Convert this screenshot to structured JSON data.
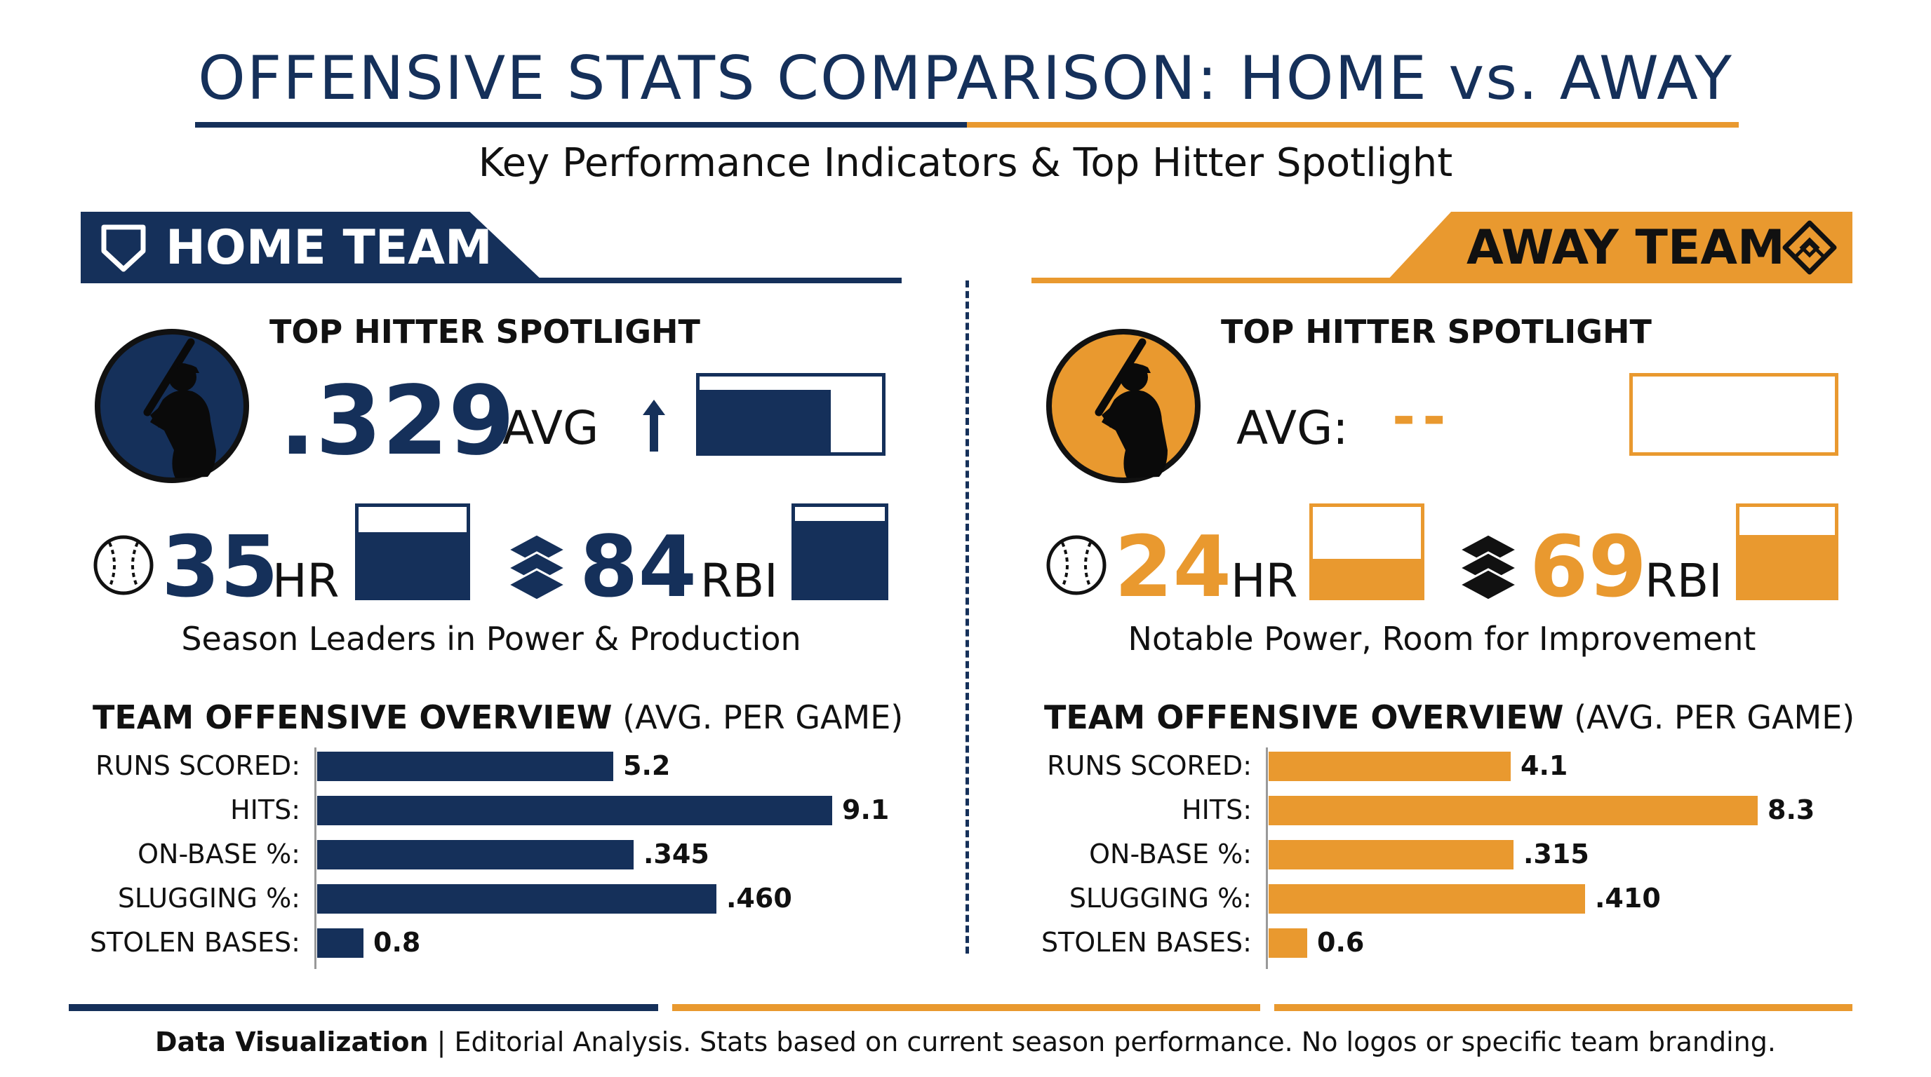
{
  "header": {
    "title": "OFFENSIVE STATS COMPARISON: HOME vs. AWAY",
    "subtitle": "Key Performance Indicators & Top Hitter Spotlight"
  },
  "colors": {
    "home": "#15305a",
    "away": "#e9992f"
  },
  "home": {
    "team_label": "HOME TEAM",
    "icon": "home-plate-icon",
    "spotlight_title": "TOP HITTER SPOTLIGHT",
    "avg_value": ".329",
    "avg_unit": "AVG",
    "avg_trend": "up-arrow-icon",
    "avg_gauge_fill": 0.72,
    "hr_value": "35",
    "hr_unit": "HR",
    "hr_gauge_fill": 0.72,
    "rbi_value": "84",
    "rbi_unit": "RBI",
    "rbi_gauge_fill": 0.84,
    "caption": "Season Leaders in Power & Production",
    "overview_title_bold": "TEAM OFFENSIVE OVERVIEW",
    "overview_title_rest": " (AVG. PER GAME)"
  },
  "away": {
    "team_label": "AWAY TEAM",
    "icon": "baseball-diamond-icon",
    "spotlight_title": "TOP HITTER SPOTLIGHT",
    "avg_label": "AVG:",
    "avg_value": "--",
    "avg_gauge_fill": 0,
    "hr_value": "24",
    "hr_unit": "HR",
    "hr_gauge_fill": 0.42,
    "rbi_value": "69",
    "rbi_unit": "RBI",
    "rbi_gauge_fill": 0.69,
    "caption": "Notable Power, Room for Improvement",
    "overview_title_bold": "TEAM OFFENSIVE OVERVIEW",
    "overview_title_rest": " (AVG. PER GAME)"
  },
  "chart_data": [
    {
      "type": "bar",
      "orientation": "horizontal",
      "title": "TEAM OFFENSIVE OVERVIEW (AVG. PER GAME)",
      "categories": [
        "RUNS SCORED:",
        "HITS:",
        "ON-BASE %:",
        "SLUGGING %:",
        "STOLEN BASES:"
      ],
      "values": [
        5.2,
        9.1,
        0.345,
        0.46,
        0.8
      ],
      "value_labels": [
        "5.2",
        "9.1",
        ".345",
        ".460",
        "0.8"
      ],
      "bar_fill_fraction": [
        0.575,
        1.0,
        0.615,
        0.775,
        0.09
      ],
      "color": "#15305a"
    },
    {
      "type": "bar",
      "orientation": "horizontal",
      "title": "TEAM OFFENSIVE OVERVIEW (AVG. PER GAME)",
      "categories": [
        "RUNS SCORED:",
        "HITS:",
        "ON-BASE %:",
        "SLUGGING %:",
        "STOLEN BASES:"
      ],
      "values": [
        4.1,
        8.3,
        0.315,
        0.41,
        0.6
      ],
      "value_labels": [
        "4.1",
        "8.3",
        ".315",
        ".410",
        "0.6"
      ],
      "bar_fill_fraction": [
        0.47,
        0.95,
        0.475,
        0.615,
        0.075
      ],
      "color": "#e9992f"
    }
  ],
  "footer": {
    "bold": "Data Visualization",
    "rest": " | Editorial Analysis. Stats based on current season performance. No logos or specific team branding."
  }
}
